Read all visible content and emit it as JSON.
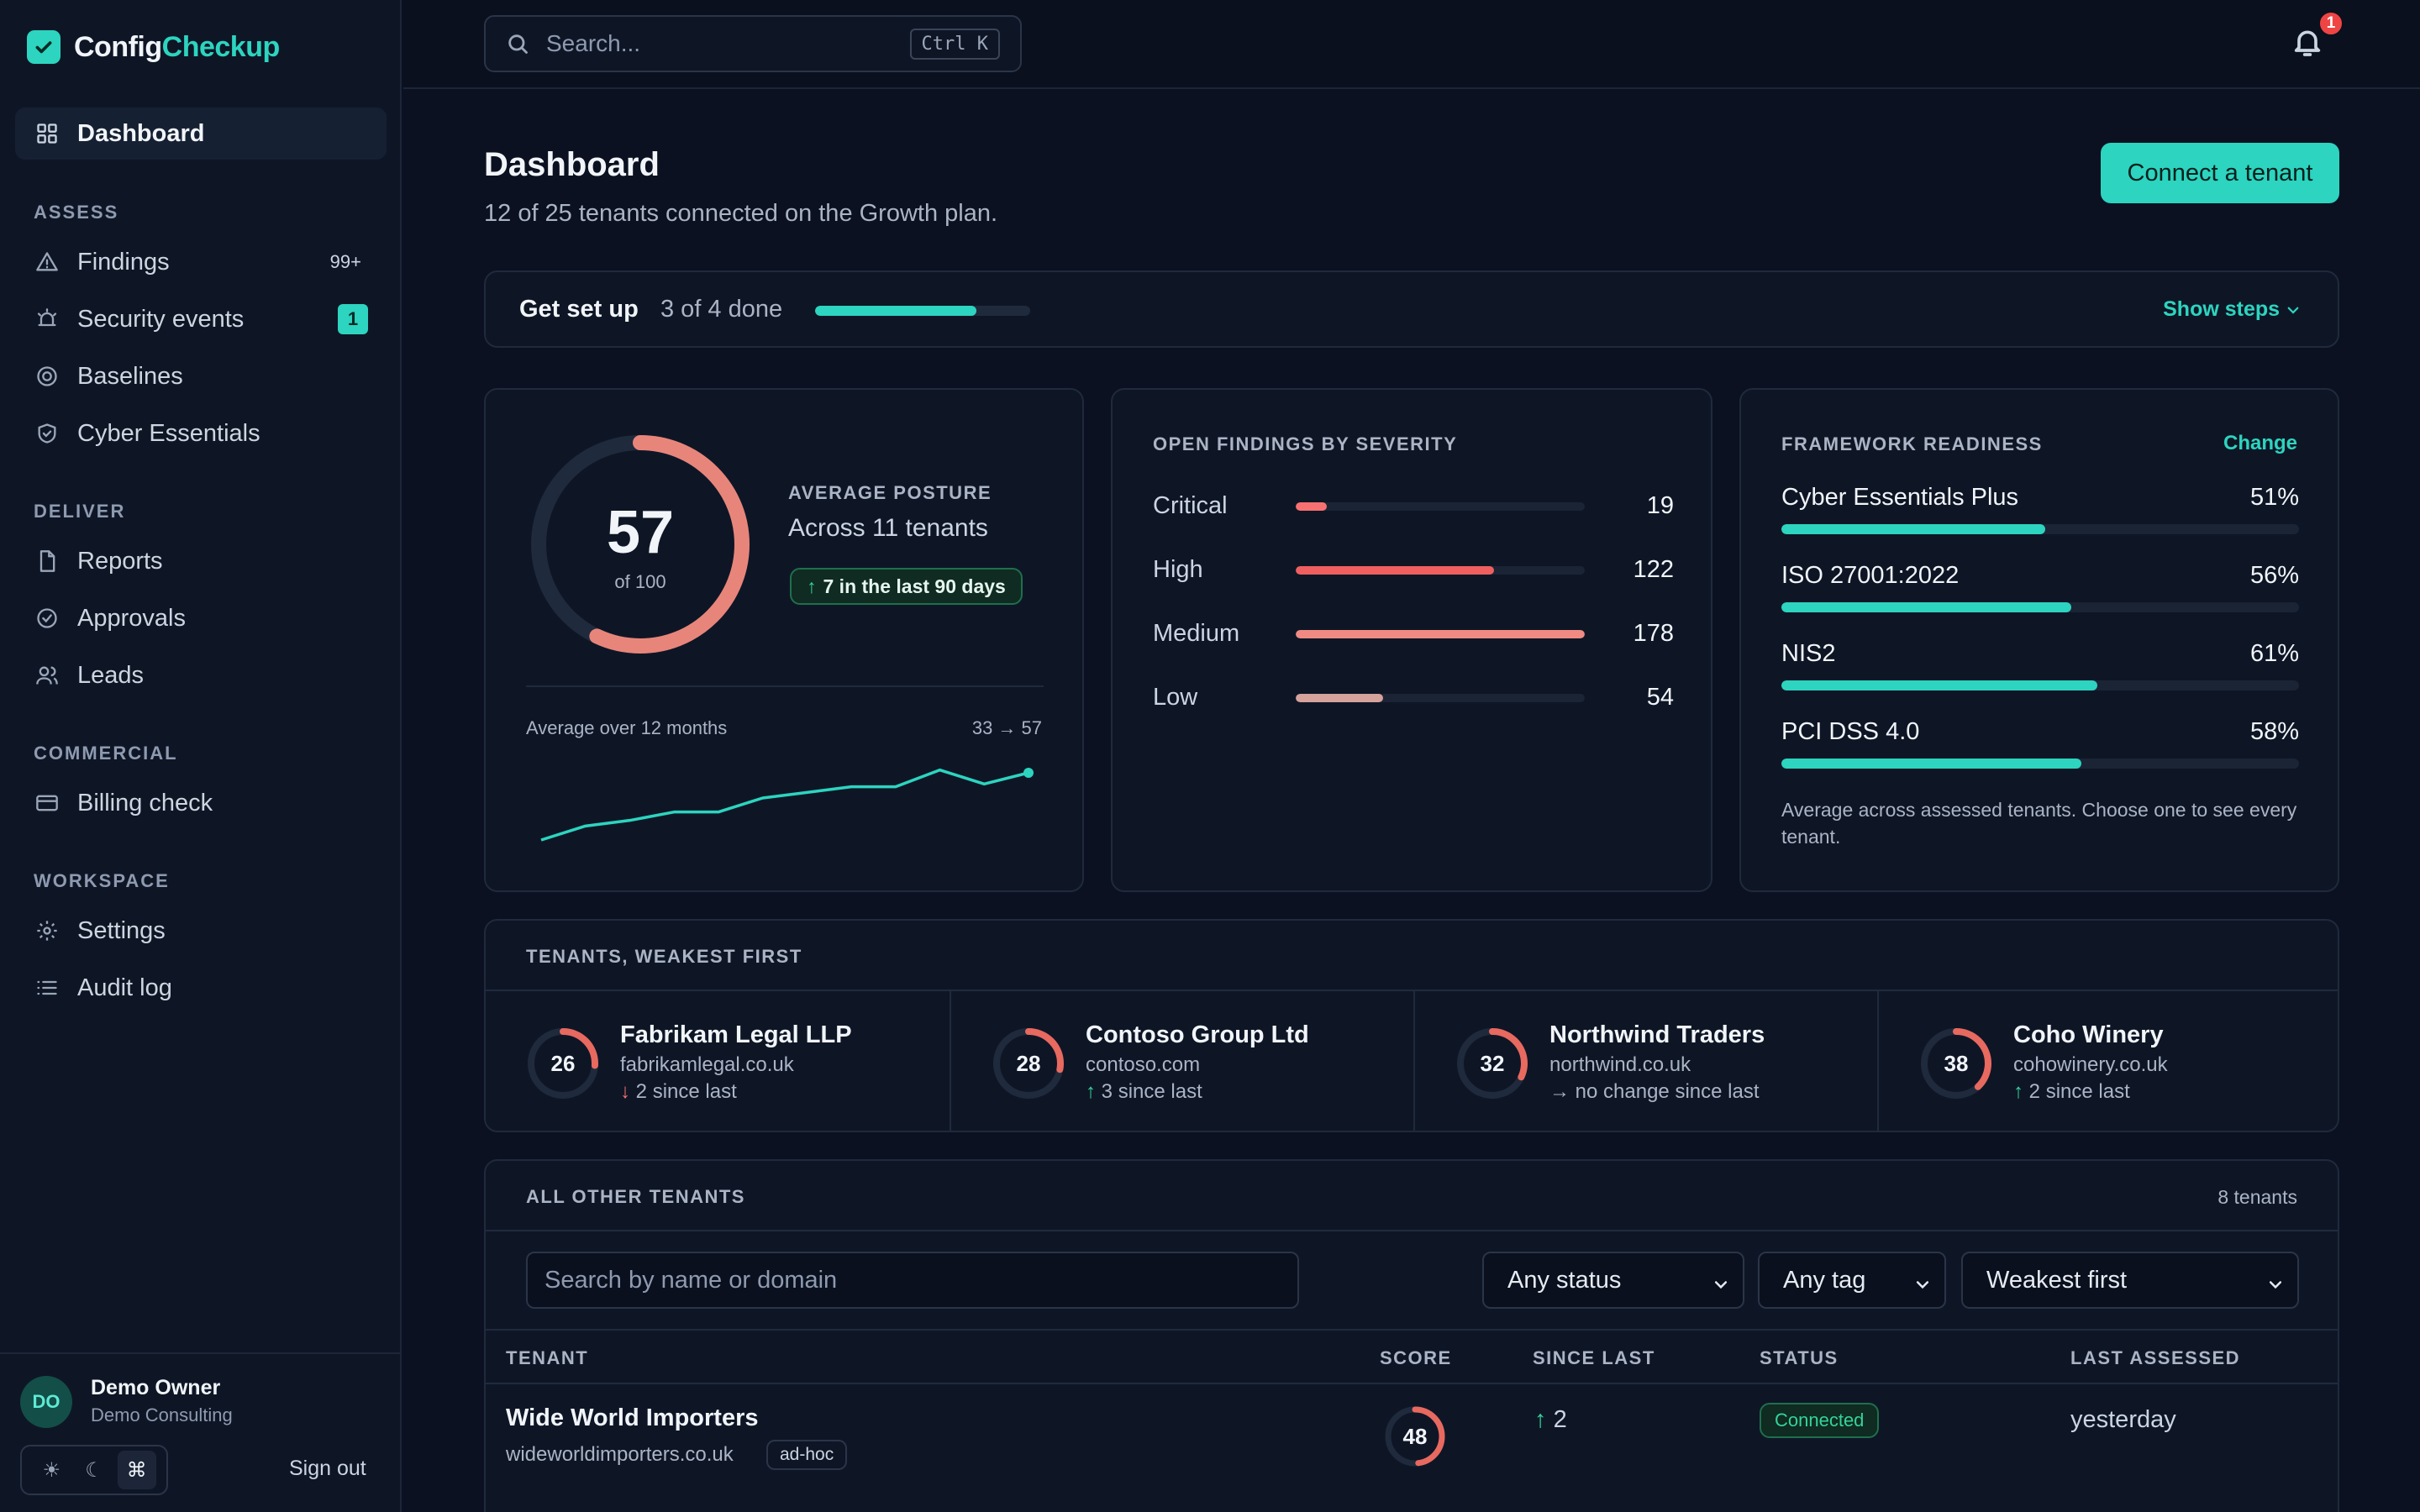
{
  "brand": {
    "part1": "Config",
    "part2": "Checkup"
  },
  "sidebar": {
    "dashboard": "Dashboard",
    "sections": {
      "assess": "ASSESS",
      "deliver": "DELIVER",
      "commercial": "COMMERCIAL",
      "workspace": "WORKSPACE"
    },
    "items": {
      "findings": {
        "label": "Findings",
        "badge": "99+"
      },
      "security_events": {
        "label": "Security events",
        "badge": "1"
      },
      "baselines": {
        "label": "Baselines"
      },
      "cyber_essentials": {
        "label": "Cyber Essentials"
      },
      "reports": {
        "label": "Reports"
      },
      "approvals": {
        "label": "Approvals"
      },
      "leads": {
        "label": "Leads"
      },
      "billing_check": {
        "label": "Billing check"
      },
      "settings": {
        "label": "Settings"
      },
      "audit_log": {
        "label": "Audit log"
      }
    },
    "user": {
      "initials": "DO",
      "name": "Demo Owner",
      "org": "Demo Consulting"
    },
    "theme": {
      "light": "☀",
      "dark": "☾",
      "system": "⌘"
    },
    "signout": "Sign out"
  },
  "topbar": {
    "search_placeholder": "Search...",
    "shortcut": "Ctrl K",
    "notifications": "1"
  },
  "page": {
    "title": "Dashboard",
    "subtitle": "12 of 25 tenants connected on the Growth plan.",
    "cta": "Connect a tenant"
  },
  "setup": {
    "title": "Get set up",
    "progress_text": "3 of 4 done",
    "progress": 0.75,
    "toggle": "Show steps"
  },
  "posture": {
    "score": "57",
    "score_value": 57,
    "out_of": "of 100",
    "label": "AVERAGE POSTURE",
    "sub": "Across 11 tenants",
    "change": "7 in the last 90 days",
    "trend_label": "Average over 12 months",
    "trend_range": "33 → 57",
    "trend": [
      33,
      38,
      40,
      43,
      43,
      48,
      50,
      52,
      52,
      58,
      53,
      57
    ]
  },
  "severity": {
    "title": "OPEN FINDINGS BY SEVERITY",
    "max": 178,
    "rows": [
      {
        "name": "Critical",
        "value": "19",
        "num": 19,
        "color": "#f87171"
      },
      {
        "name": "High",
        "value": "122",
        "num": 122,
        "color": "#ef5f5f"
      },
      {
        "name": "Medium",
        "value": "178",
        "num": 178,
        "color": "#f08a82"
      },
      {
        "name": "Low",
        "value": "54",
        "num": 54,
        "color": "#d6a29c"
      }
    ]
  },
  "framework": {
    "title": "FRAMEWORK READINESS",
    "change": "Change",
    "rows": [
      {
        "name": "Cyber Essentials Plus",
        "value": "51%",
        "pct": 51
      },
      {
        "name": "ISO 27001:2022",
        "value": "56%",
        "pct": 56
      },
      {
        "name": "NIS2",
        "value": "61%",
        "pct": 61
      },
      {
        "name": "PCI DSS 4.0",
        "value": "58%",
        "pct": 58
      }
    ],
    "note": "Average across assessed tenants. Choose one to see every tenant."
  },
  "weakest": {
    "title": "TENANTS, WEAKEST FIRST",
    "tenants": [
      {
        "score": "26",
        "num": 26,
        "name": "Fabrikam Legal LLP",
        "domain": "fabrikamlegal.co.uk",
        "arrow": "↓",
        "dir": "down",
        "change": "2 since last"
      },
      {
        "score": "28",
        "num": 28,
        "name": "Contoso Group Ltd",
        "domain": "contoso.com",
        "arrow": "↑",
        "dir": "up",
        "change": "3 since last"
      },
      {
        "score": "32",
        "num": 32,
        "name": "Northwind Traders",
        "domain": "northwind.co.uk",
        "arrow": "→",
        "dir": "flat",
        "change": "no change since last"
      },
      {
        "score": "38",
        "num": 38,
        "name": "Coho Winery",
        "domain": "cohowinery.co.uk",
        "arrow": "↑",
        "dir": "up",
        "change": "2 since last"
      }
    ]
  },
  "others": {
    "title": "ALL OTHER TENANTS",
    "count": "8 tenants",
    "search_placeholder": "Search by name or domain",
    "filters": {
      "status": "Any status",
      "tag": "Any tag",
      "sort": "Weakest first"
    },
    "columns": {
      "tenant": "TENANT",
      "score": "SCORE",
      "since": "SINCE LAST",
      "status": "STATUS",
      "assessed": "LAST ASSESSED"
    },
    "rows": [
      {
        "name": "Wide World Importers",
        "domain": "wideworldimporters.co.uk",
        "tag": "ad-hoc",
        "score": "48",
        "num": 48,
        "since_arrow": "↑",
        "since": "2",
        "status": "Connected",
        "assessed": "yesterday"
      }
    ]
  }
}
